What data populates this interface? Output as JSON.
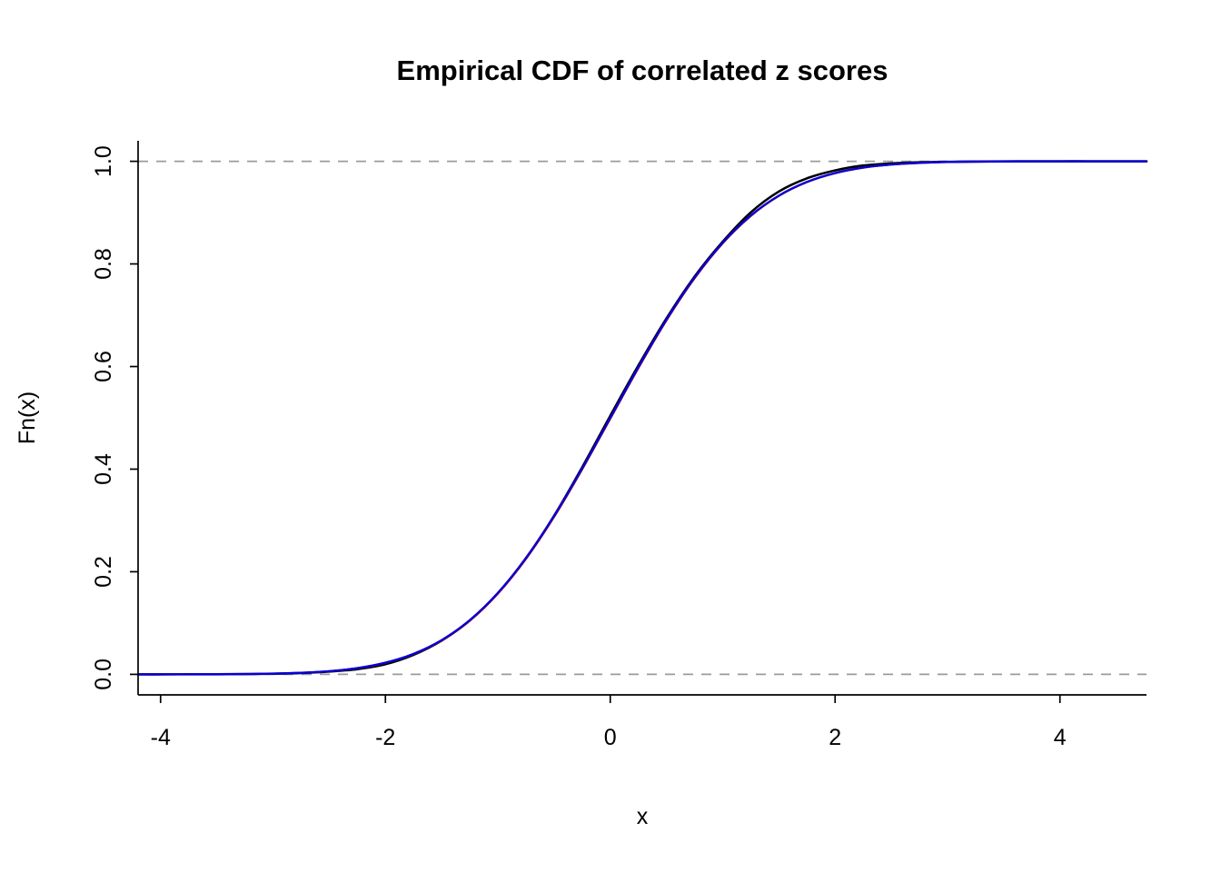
{
  "chart_data": {
    "type": "line",
    "title": "Empirical CDF of correlated z scores",
    "xlabel": "x",
    "ylabel": "Fn(x)",
    "xlim": [
      -4.2,
      4.77
    ],
    "ylim": [
      -0.04,
      1.04
    ],
    "xticks": [
      -4,
      -2,
      0,
      2,
      4
    ],
    "xtick_labels": [
      "-4",
      "-2",
      "0",
      "2",
      "4"
    ],
    "yticks": [
      0.0,
      0.2,
      0.4,
      0.6,
      0.8,
      1.0
    ],
    "ytick_labels": [
      "0.0",
      "0.2",
      "0.4",
      "0.6",
      "0.8",
      "1.0"
    ],
    "grid": false,
    "legend": "none",
    "axis_color": "#000000",
    "reference_lines": {
      "h": [
        0,
        1
      ],
      "style": "dashed",
      "color": "#9b9b9b"
    },
    "x": [
      -4.2,
      -4,
      -3.75,
      -3.5,
      -3.25,
      -3,
      -2.75,
      -2.5,
      -2.25,
      -2,
      -1.75,
      -1.5,
      -1.25,
      -1,
      -0.75,
      -0.5,
      -0.25,
      0,
      0.25,
      0.5,
      0.75,
      1,
      1.25,
      1.5,
      1.75,
      2,
      2.25,
      2.5,
      2.75,
      3,
      3.25,
      3.5,
      3.75,
      4,
      4.25,
      4.5,
      4.77
    ],
    "series": [
      {
        "name": "empirical-cdf-black",
        "color": "#000000",
        "values": [
          0,
          0,
          0.0001,
          0.0002,
          0.0005,
          0.0012,
          0.0026,
          0.0055,
          0.0102,
          0.0198,
          0.0381,
          0.0658,
          0.1049,
          0.1581,
          0.2264,
          0.3089,
          0.4036,
          0.5038,
          0.6019,
          0.6938,
          0.7752,
          0.8432,
          0.9004,
          0.9412,
          0.9669,
          0.9823,
          0.9918,
          0.9958,
          0.998,
          0.999,
          0.9996,
          0.9999,
          1,
          1,
          1,
          1,
          1
        ]
      },
      {
        "name": "cdf-red",
        "color": "#c00000",
        "values": [
          0,
          0,
          0.0001,
          0.0002,
          0.0006,
          0.0013,
          0.003,
          0.0061,
          0.012,
          0.0225,
          0.0396,
          0.0661,
          0.1046,
          0.1574,
          0.2251,
          0.3069,
          0.3997,
          0.4984,
          0.5971,
          0.69,
          0.7721,
          0.8402,
          0.8936,
          0.9326,
          0.9595,
          0.9769,
          0.9876,
          0.9937,
          0.9969,
          0.9987,
          0.9994,
          0.9998,
          0.9999,
          1,
          1,
          1,
          1
        ]
      },
      {
        "name": "theoretical-normal-cdf-blue",
        "color": "#0000e0",
        "values": [
          0,
          0,
          0.0001,
          0.0002,
          0.0006,
          0.0013,
          0.003,
          0.0062,
          0.0122,
          0.0228,
          0.0401,
          0.0668,
          0.1056,
          0.1587,
          0.2266,
          0.3085,
          0.4013,
          0.5,
          0.5987,
          0.6915,
          0.7734,
          0.8413,
          0.8944,
          0.9332,
          0.9599,
          0.9772,
          0.9878,
          0.9938,
          0.997,
          0.9987,
          0.9994,
          0.9998,
          0.9999,
          1,
          1,
          1,
          1
        ]
      }
    ]
  }
}
